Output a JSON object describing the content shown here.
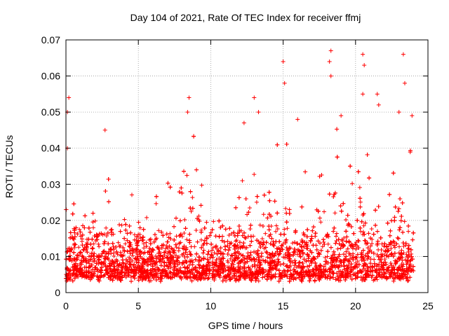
{
  "chart_data": {
    "type": "scatter",
    "title": "Day 104 of 2021, Rate Of TEC Index for receiver ffmj",
    "xlabel": "GPS time / hours",
    "ylabel": "ROTI / TECUs",
    "xlim": [
      0,
      25
    ],
    "ylim": [
      0,
      0.07
    ],
    "xticks": [
      0,
      5,
      10,
      15,
      20,
      25
    ],
    "xtick_labels": [
      "0",
      "5",
      "10",
      "15",
      "20",
      "25"
    ],
    "yticks": [
      0,
      0.01,
      0.02,
      0.03,
      0.04,
      0.05,
      0.06,
      0.07
    ],
    "ytick_labels": [
      "0",
      "0.01",
      "0.02",
      "0.03",
      "0.04",
      "0.05",
      "0.06",
      "0.07"
    ],
    "grid": true,
    "marker": "+",
    "series_color": "#ff0000",
    "series": [
      {
        "name": "ROTI",
        "x_range": [
          0,
          24
        ],
        "baseline_typical": [
          0.005,
          0.02
        ],
        "notable_points": [
          {
            "x": 0.1,
            "y": 0.05
          },
          {
            "x": 0.2,
            "y": 0.054
          },
          {
            "x": 0.1,
            "y": 0.04
          },
          {
            "x": 8.5,
            "y": 0.054
          },
          {
            "x": 8.4,
            "y": 0.05
          },
          {
            "x": 13.0,
            "y": 0.054
          },
          {
            "x": 13.3,
            "y": 0.05
          },
          {
            "x": 15.0,
            "y": 0.064
          },
          {
            "x": 15.1,
            "y": 0.058
          },
          {
            "x": 18.3,
            "y": 0.067
          },
          {
            "x": 18.2,
            "y": 0.064
          },
          {
            "x": 18.3,
            "y": 0.06
          },
          {
            "x": 20.5,
            "y": 0.066
          },
          {
            "x": 20.6,
            "y": 0.063
          },
          {
            "x": 20.5,
            "y": 0.055
          },
          {
            "x": 21.5,
            "y": 0.055
          },
          {
            "x": 21.6,
            "y": 0.052
          },
          {
            "x": 23.3,
            "y": 0.066
          },
          {
            "x": 23.4,
            "y": 0.058
          },
          {
            "x": 23.0,
            "y": 0.05
          },
          {
            "x": 23.9,
            "y": 0.049
          },
          {
            "x": 2.7,
            "y": 0.045
          },
          {
            "x": 12.3,
            "y": 0.047
          },
          {
            "x": 19.0,
            "y": 0.049
          },
          {
            "x": 16.0,
            "y": 0.048
          }
        ]
      }
    ]
  }
}
